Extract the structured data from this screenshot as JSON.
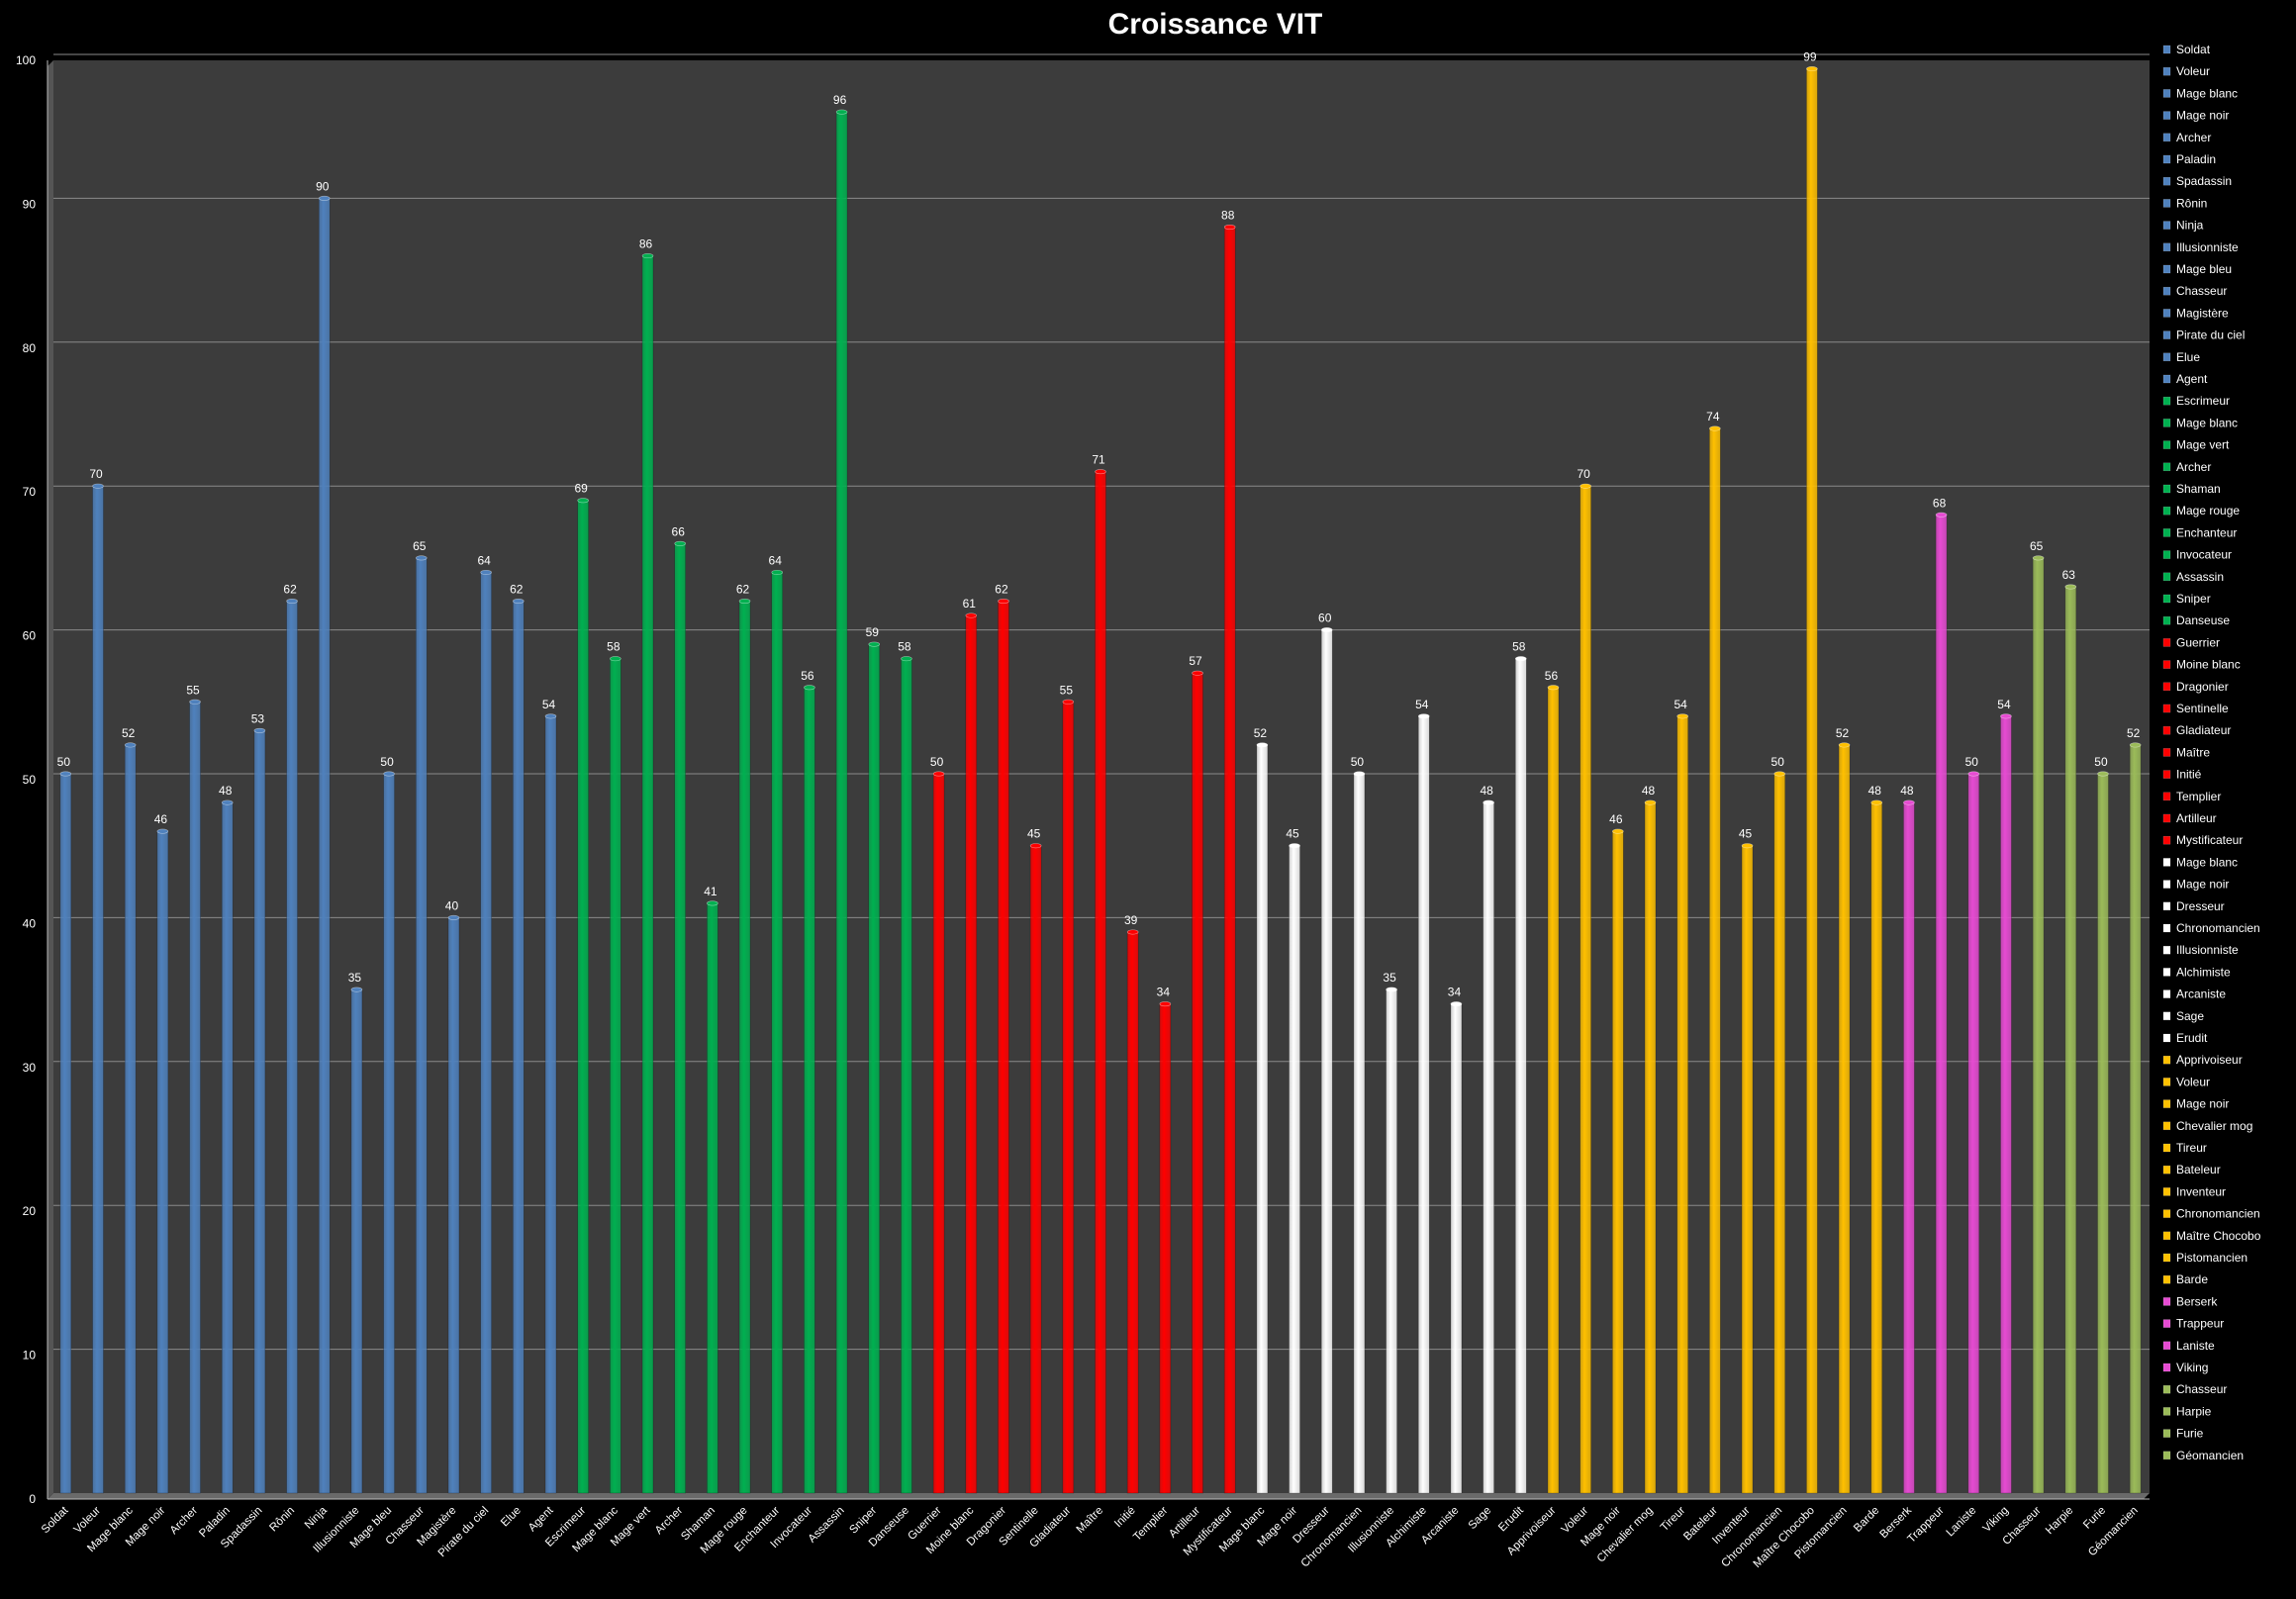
{
  "chart_data": {
    "type": "bar",
    "title": "Croissance VIT",
    "ylim": [
      0,
      100
    ],
    "yticks": [
      0,
      10,
      20,
      30,
      40,
      50,
      60,
      70,
      80,
      90,
      100
    ],
    "grid": true,
    "legend_position": "right",
    "groups": [
      {
        "color": "#4f81bd",
        "start": 0,
        "count": 16
      },
      {
        "color": "#00b050",
        "start": 16,
        "count": 11
      },
      {
        "color": "#ff0000",
        "start": 27,
        "count": 10
      },
      {
        "color": "#ffffff",
        "start": 37,
        "count": 9
      },
      {
        "color": "#ffc000",
        "start": 46,
        "count": 11
      },
      {
        "color": "#e64bd2",
        "start": 57,
        "count": 4
      },
      {
        "color": "#9bbb59",
        "start": 61,
        "count": 4
      }
    ],
    "categories": [
      "Soldat",
      "Voleur",
      "Mage blanc",
      "Mage noir",
      "Archer",
      "Paladin",
      "Spadassin",
      "Rônin",
      "Ninja",
      "Illusionniste",
      "Mage bleu",
      "Chasseur",
      "Magistère",
      "Pirate du ciel",
      "Elue",
      "Agent",
      "Escrimeur",
      "Mage blanc",
      "Mage vert",
      "Archer",
      "Shaman",
      "Mage rouge",
      "Enchanteur",
      "Invocateur",
      "Assassin",
      "Sniper",
      "Danseuse",
      "Guerrier",
      "Moine blanc",
      "Dragonier",
      "Sentinelle",
      "Gladiateur",
      "Maître",
      "Initié",
      "Templier",
      "Artilleur",
      "Mystificateur",
      "Mage blanc",
      "Mage noir",
      "Dresseur",
      "Chronomancien",
      "Illusionniste",
      "Alchimiste",
      "Arcaniste",
      "Sage",
      "Erudit",
      "Apprivoiseur",
      "Voleur",
      "Mage noir",
      "Chevalier mog",
      "Tireur",
      "Bateleur",
      "Inventeur",
      "Chronomancien",
      "Maître Chocobo",
      "Pistomancien",
      "Barde",
      "Berserk",
      "Trappeur",
      "Laniste",
      "Viking",
      "Chasseur",
      "Harpie",
      "Furie",
      "Géomancien"
    ],
    "values": [
      50,
      70,
      52,
      46,
      55,
      48,
      53,
      62,
      90,
      35,
      50,
      65,
      40,
      64,
      62,
      54,
      69,
      58,
      86,
      66,
      41,
      62,
      64,
      56,
      96,
      59,
      58,
      50,
      61,
      62,
      45,
      55,
      71,
      39,
      34,
      57,
      88,
      52,
      45,
      60,
      50,
      35,
      54,
      34,
      48,
      58,
      56,
      70,
      46,
      48,
      54,
      74,
      45,
      50,
      99,
      52,
      48,
      48,
      68,
      50,
      54,
      65,
      63,
      50,
      52
    ]
  }
}
